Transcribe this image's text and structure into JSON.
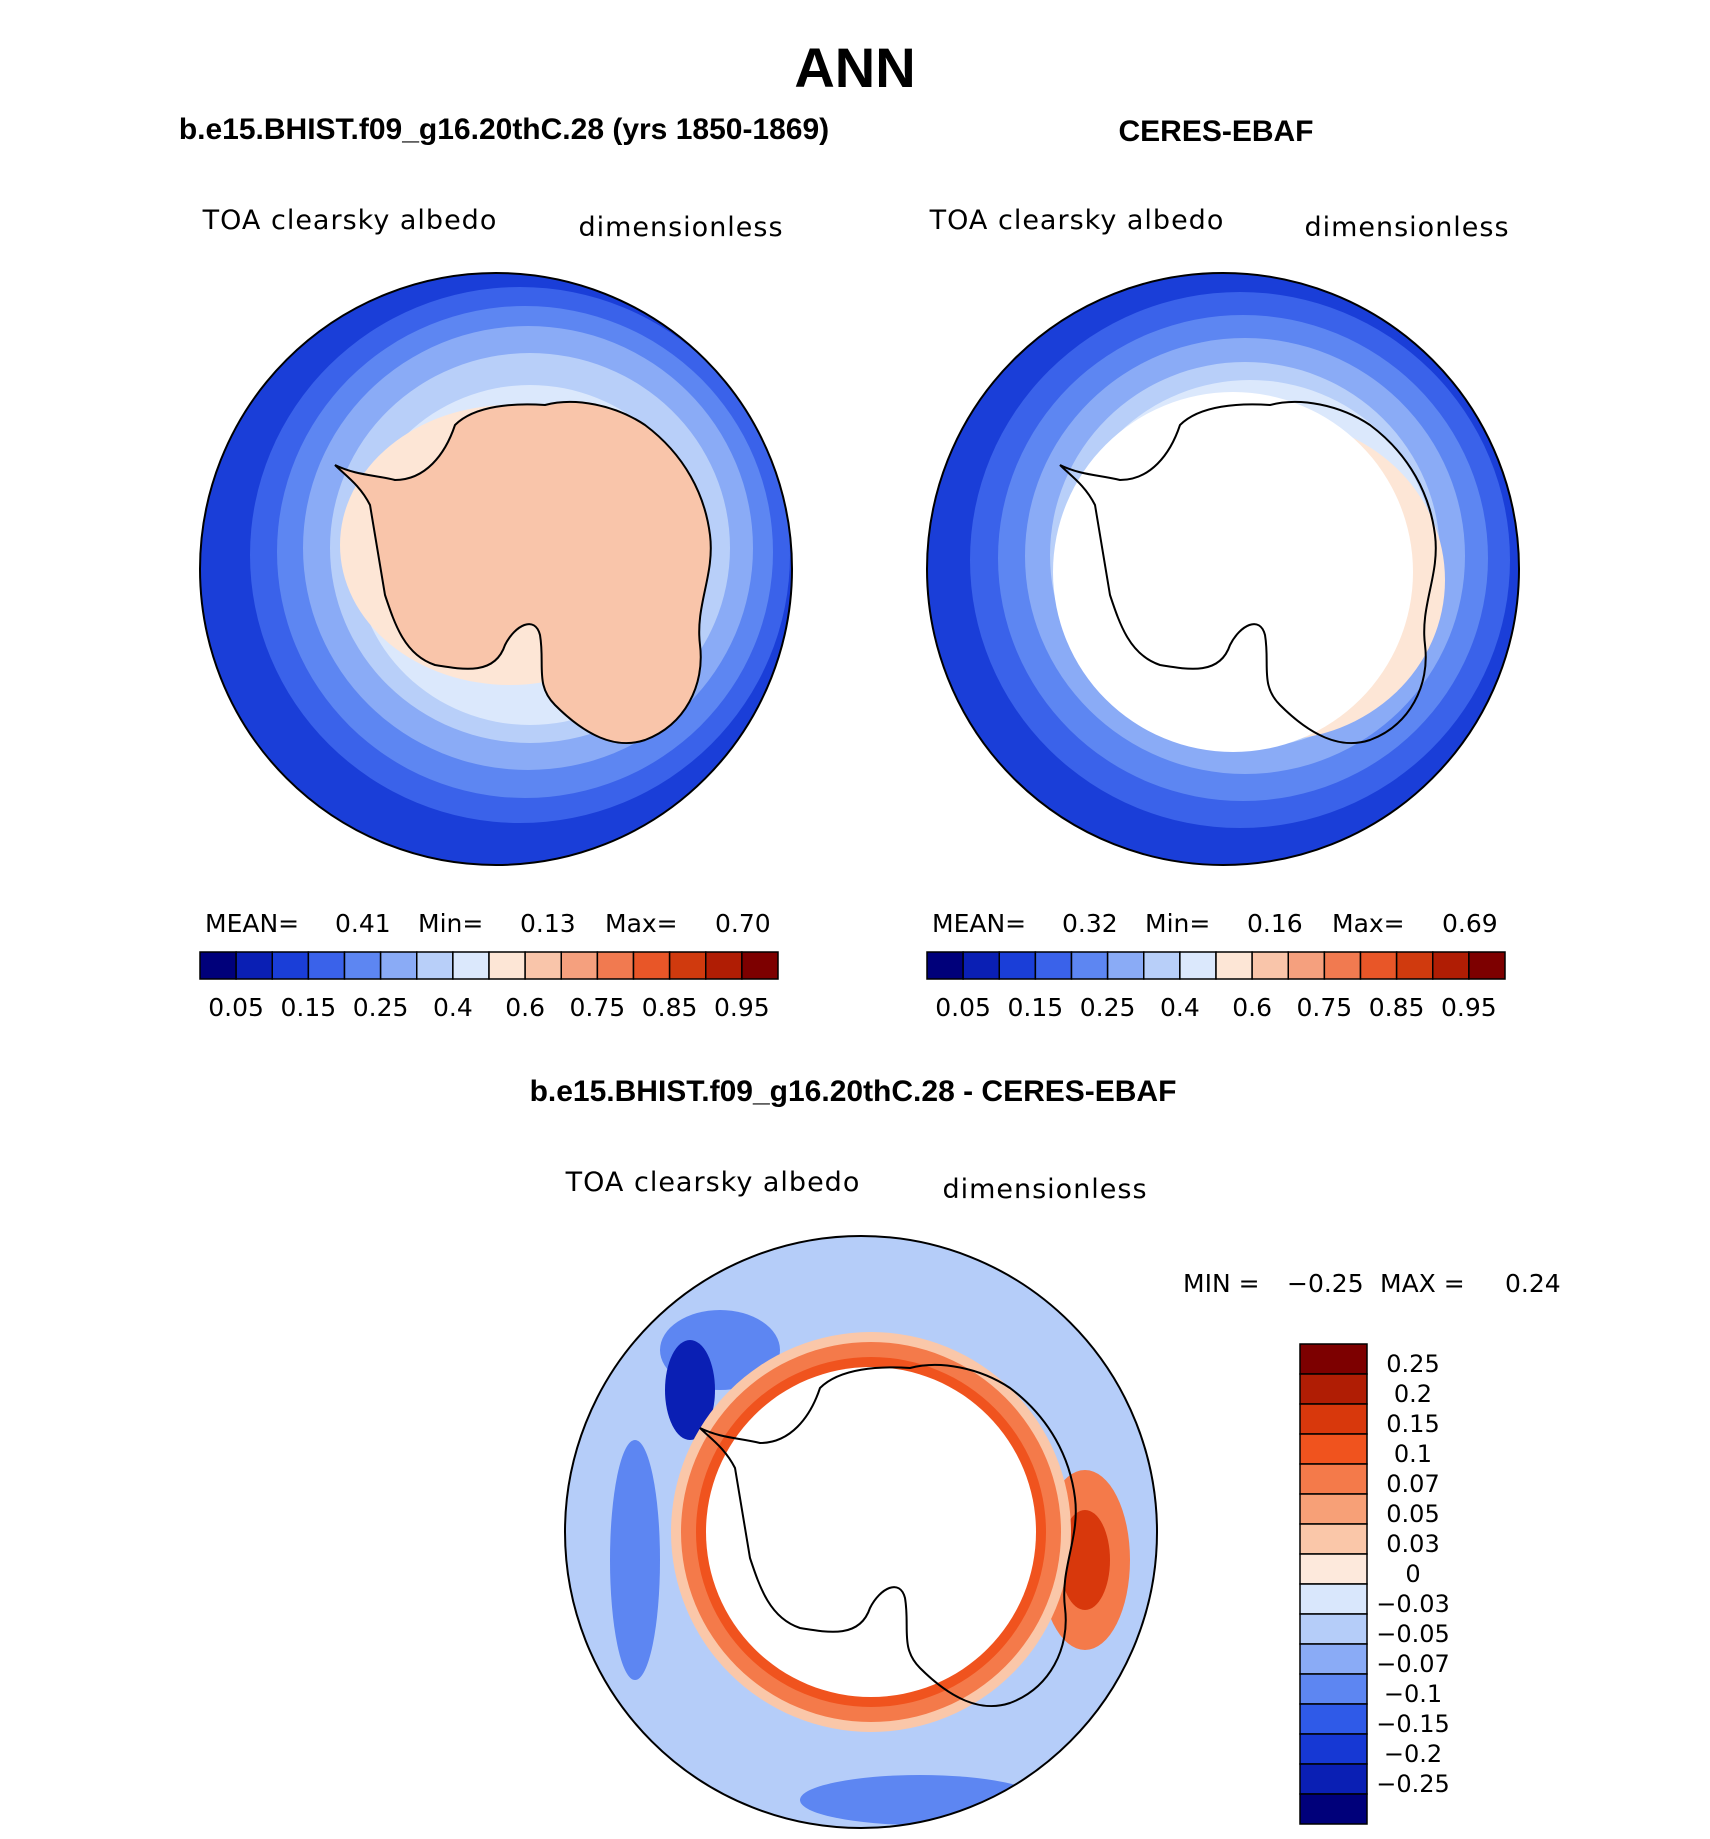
{
  "figure": {
    "season_title": "ANN",
    "colors": {
      "ocean_dark": "#1a3ed8",
      "coastline": "#000000",
      "missing": "#ffffff"
    }
  },
  "panels": [
    {
      "title": "b.e15.BHIST.f09_g16.20thC.28 (yrs 1850-1869)",
      "variable": "TOA clearsky albedo",
      "units": "dimensionless",
      "stats": {
        "mean_label": "MEAN=",
        "mean": "0.41",
        "min_label": "Min=",
        "min": "0.13",
        "max_label": "Max=",
        "max": "0.70"
      }
    },
    {
      "title": "CERES-EBAF",
      "variable": "TOA clearsky albedo",
      "units": "dimensionless",
      "stats": {
        "mean_label": "MEAN=",
        "mean": "0.32",
        "min_label": "Min=",
        "min": "0.16",
        "max_label": "Max=",
        "max": "0.69"
      }
    }
  ],
  "diff_panel": {
    "title": "b.e15.BHIST.f09_g16.20thC.28 - CERES-EBAF",
    "variable": "TOA clearsky albedo",
    "units": "dimensionless",
    "stats": {
      "min_label": "MIN =",
      "min": "−0.25",
      "max_label": "MAX =",
      "max": "0.24"
    }
  },
  "chart_data": [
    {
      "type": "heatmap",
      "title": "b.e15.BHIST.f09_g16.20thC.28 (yrs 1850-1869)",
      "projection": "south polar stereographic",
      "colorbar": {
        "orientation": "horizontal",
        "tick_labels": [
          "0.05",
          "0.15",
          "0.25",
          "0.4",
          "0.6",
          "0.75",
          "0.85",
          "0.95"
        ],
        "colors": [
          "#00007a",
          "#0a1fb4",
          "#1a3ed8",
          "#3a62ea",
          "#5d86f2",
          "#8aabf6",
          "#b8cff9",
          "#dbe8fc",
          "#fde6d6",
          "#f9c5aa",
          "#f5a07e",
          "#f17a50",
          "#e85628",
          "#d03a0e",
          "#b01d04",
          "#7d0000"
        ]
      },
      "summary": {
        "mean": 0.41,
        "min": 0.13,
        "max": 0.7
      }
    },
    {
      "type": "heatmap",
      "title": "CERES-EBAF",
      "projection": "south polar stereographic",
      "colorbar": {
        "orientation": "horizontal",
        "tick_labels": [
          "0.05",
          "0.15",
          "0.25",
          "0.4",
          "0.6",
          "0.75",
          "0.85",
          "0.95"
        ],
        "colors": [
          "#00007a",
          "#0a1fb4",
          "#1a3ed8",
          "#3a62ea",
          "#5d86f2",
          "#8aabf6",
          "#b8cff9",
          "#dbe8fc",
          "#fde6d6",
          "#f9c5aa",
          "#f5a07e",
          "#f17a50",
          "#e85628",
          "#d03a0e",
          "#b01d04",
          "#7d0000"
        ]
      },
      "summary": {
        "mean": 0.32,
        "min": 0.16,
        "max": 0.69
      }
    },
    {
      "type": "heatmap",
      "title": "b.e15.BHIST.f09_g16.20thC.28 - CERES-EBAF",
      "projection": "south polar stereographic",
      "colorbar": {
        "orientation": "vertical",
        "tick_labels": [
          "0.25",
          "0.2",
          "0.15",
          "0.1",
          "0.07",
          "0.05",
          "0.03",
          "0",
          "−0.03",
          "−0.05",
          "−0.07",
          "−0.1",
          "−0.15",
          "−0.2",
          "−0.25"
        ],
        "colors": [
          "#7d0000",
          "#b01d04",
          "#d8380c",
          "#f0531e",
          "#f47a4a",
          "#f7a077",
          "#fac7a9",
          "#fde9dc",
          "#d9e7fc",
          "#b5cdf9",
          "#8aabf6",
          "#5d86f2",
          "#2f5ae8",
          "#1638d4",
          "#0a1fb4",
          "#00007a"
        ]
      },
      "summary": {
        "min": -0.25,
        "max": 0.24
      }
    }
  ]
}
